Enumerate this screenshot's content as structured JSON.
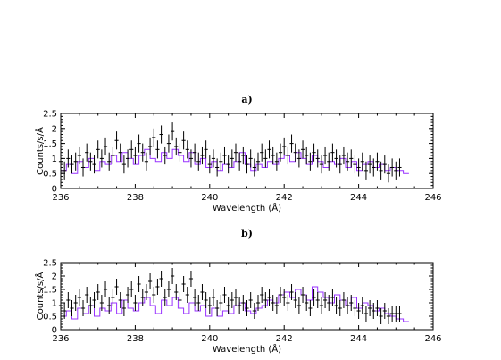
{
  "chart_data": [
    {
      "type": "line",
      "title": "a)",
      "xlabel": "Wavelength (Å)",
      "ylabel": "Counts/s/Å",
      "xlim": [
        236,
        246
      ],
      "ylim": [
        0,
        2.5
      ],
      "x_ticks": [
        "236",
        "238",
        "240",
        "242",
        "244",
        "246"
      ],
      "y_ticks": [
        "0",
        "0.5",
        "1",
        "1.5",
        "2",
        "2.5"
      ],
      "grid": false,
      "series": [
        {
          "kind": "data-with-errorbars",
          "x": [
            236.0,
            236.1,
            236.2,
            236.3,
            236.4,
            236.5,
            236.6,
            236.7,
            236.8,
            236.9,
            237.0,
            237.1,
            237.2,
            237.3,
            237.4,
            237.5,
            237.6,
            237.7,
            237.8,
            237.9,
            238.0,
            238.1,
            238.2,
            238.3,
            238.4,
            238.5,
            238.6,
            238.7,
            238.8,
            238.9,
            239.0,
            239.1,
            239.2,
            239.3,
            239.4,
            239.5,
            239.6,
            239.7,
            239.8,
            239.9,
            240.0,
            240.1,
            240.2,
            240.3,
            240.4,
            240.5,
            240.6,
            240.7,
            240.8,
            240.9,
            241.0,
            241.1,
            241.2,
            241.3,
            241.4,
            241.5,
            241.6,
            241.7,
            241.8,
            241.9,
            242.0,
            242.1,
            242.2,
            242.3,
            242.4,
            242.5,
            242.6,
            242.7,
            242.8,
            242.9,
            243.0,
            243.1,
            243.2,
            243.3,
            243.4,
            243.5,
            243.6,
            243.7,
            243.8,
            243.9,
            244.0,
            244.1,
            244.2,
            244.3,
            244.4,
            244.5,
            244.6,
            244.7,
            244.8,
            244.9,
            245.0,
            245.1
          ],
          "y": [
            0.9,
            0.6,
            1.0,
            0.8,
            0.9,
            1.1,
            0.7,
            1.2,
            0.9,
            0.8,
            1.3,
            1.0,
            1.4,
            0.9,
            1.1,
            1.6,
            1.2,
            0.8,
            1.0,
            1.3,
            1.1,
            1.5,
            1.2,
            0.9,
            1.4,
            1.7,
            1.3,
            1.8,
            1.1,
            1.5,
            1.9,
            1.4,
            1.2,
            1.6,
            1.3,
            1.0,
            1.2,
            0.9,
            1.1,
            1.3,
            0.8,
            1.0,
            0.7,
            0.9,
            1.1,
            0.8,
            1.0,
            1.2,
            0.9,
            1.1,
            0.8,
            1.0,
            0.7,
            0.9,
            1.2,
            1.0,
            1.3,
            1.1,
            0.9,
            1.2,
            1.4,
            1.1,
            1.5,
            1.2,
            1.0,
            1.3,
            1.1,
            0.9,
            1.2,
            1.0,
            0.8,
            1.1,
            0.9,
            1.2,
            1.0,
            0.8,
            1.1,
            0.9,
            1.0,
            0.8,
            0.7,
            0.9,
            0.6,
            0.8,
            0.7,
            0.9,
            0.6,
            0.8,
            0.5,
            0.7,
            0.6,
            0.7
          ],
          "yerr": 0.3
        },
        {
          "kind": "model-step",
          "color": "#9933ff",
          "x": [
            236.0,
            236.15,
            236.3,
            236.45,
            236.6,
            236.75,
            236.9,
            237.05,
            237.2,
            237.35,
            237.5,
            237.65,
            237.8,
            237.95,
            238.1,
            238.25,
            238.4,
            238.55,
            238.7,
            238.85,
            239.0,
            239.15,
            239.3,
            239.45,
            239.6,
            239.75,
            239.9,
            240.05,
            240.2,
            240.35,
            240.5,
            240.65,
            240.8,
            240.95,
            241.1,
            241.25,
            241.4,
            241.55,
            241.7,
            241.85,
            242.0,
            242.15,
            242.3,
            242.45,
            242.6,
            242.75,
            242.9,
            243.05,
            243.2,
            243.35,
            243.5,
            243.65,
            243.8,
            243.95,
            244.1,
            244.25,
            244.4,
            244.55,
            244.7,
            244.85,
            245.0,
            245.2
          ],
          "y": [
            0.6,
            0.8,
            0.5,
            0.9,
            0.7,
            1.0,
            0.6,
            0.9,
            0.8,
            1.1,
            0.9,
            1.2,
            1.0,
            0.8,
            1.1,
            1.3,
            1.0,
            0.9,
            1.2,
            1.0,
            1.3,
            1.1,
            0.9,
            1.2,
            0.8,
            1.0,
            0.7,
            0.9,
            0.6,
            0.8,
            0.7,
            0.9,
            1.2,
            0.8,
            0.6,
            0.8,
            0.7,
            0.9,
            0.8,
            1.0,
            1.1,
            0.9,
            1.2,
            1.0,
            0.8,
            1.1,
            0.9,
            0.7,
            0.9,
            0.8,
            1.0,
            0.7,
            0.9,
            0.6,
            0.8,
            0.9,
            0.7,
            0.8,
            0.6,
            0.7,
            0.6,
            0.5
          ]
        }
      ]
    },
    {
      "type": "line",
      "title": "b)",
      "xlabel": "Wavelength (Å)",
      "ylabel": "Counts/s/Å",
      "xlim": [
        236,
        246
      ],
      "ylim": [
        0,
        2.5
      ],
      "x_ticks": [
        "236",
        "238",
        "240",
        "242",
        "244",
        "246"
      ],
      "y_ticks": [
        "0",
        "0.5",
        "1",
        "1.5",
        "2",
        "2.5"
      ],
      "grid": false,
      "series": [
        {
          "kind": "data-with-errorbars",
          "x": [
            236.0,
            236.1,
            236.2,
            236.3,
            236.4,
            236.5,
            236.6,
            236.7,
            236.8,
            236.9,
            237.0,
            237.1,
            237.2,
            237.3,
            237.4,
            237.5,
            237.6,
            237.7,
            237.8,
            237.9,
            238.0,
            238.1,
            238.2,
            238.3,
            238.4,
            238.5,
            238.6,
            238.7,
            238.8,
            238.9,
            239.0,
            239.1,
            239.2,
            239.3,
            239.4,
            239.5,
            239.6,
            239.7,
            239.8,
            239.9,
            240.0,
            240.1,
            240.2,
            240.3,
            240.4,
            240.5,
            240.6,
            240.7,
            240.8,
            240.9,
            241.0,
            241.1,
            241.2,
            241.3,
            241.4,
            241.5,
            241.6,
            241.7,
            241.8,
            241.9,
            242.0,
            242.1,
            242.2,
            242.3,
            242.4,
            242.5,
            242.6,
            242.7,
            242.8,
            242.9,
            243.0,
            243.1,
            243.2,
            243.3,
            243.4,
            243.5,
            243.6,
            243.7,
            243.8,
            243.9,
            244.0,
            244.1,
            244.2,
            244.3,
            244.4,
            244.5,
            244.6,
            244.7,
            244.8,
            244.9,
            245.0,
            245.1
          ],
          "y": [
            0.9,
            0.7,
            1.1,
            0.8,
            1.0,
            1.2,
            0.8,
            1.3,
            0.9,
            1.1,
            1.4,
            1.0,
            1.5,
            0.9,
            1.2,
            1.6,
            1.1,
            0.8,
            1.3,
            1.5,
            1.0,
            1.7,
            1.2,
            1.4,
            1.8,
            1.3,
            1.6,
            1.9,
            1.2,
            1.5,
            2.0,
            1.4,
            1.1,
            1.7,
            1.3,
            1.9,
            1.2,
            1.0,
            1.4,
            1.1,
            0.9,
            1.2,
            0.8,
            1.0,
            1.3,
            0.9,
            1.1,
            1.2,
            0.9,
            1.0,
            0.8,
            1.1,
            0.7,
            1.0,
            1.3,
            1.1,
            1.2,
            1.0,
            0.9,
            1.3,
            1.2,
            1.0,
            1.4,
            1.1,
            0.9,
            1.3,
            1.0,
            0.8,
            1.2,
            1.1,
            0.9,
            1.1,
            1.0,
            1.2,
            0.9,
            0.8,
            1.1,
            0.9,
            1.0,
            0.8,
            0.7,
            0.9,
            0.6,
            0.8,
            0.7,
            0.8,
            0.5,
            0.7,
            0.5,
            0.6,
            0.6,
            0.6
          ],
          "yerr": 0.3
        },
        {
          "kind": "model-step",
          "color": "#9933ff",
          "x": [
            236.0,
            236.15,
            236.3,
            236.45,
            236.6,
            236.75,
            236.9,
            237.05,
            237.2,
            237.35,
            237.5,
            237.65,
            237.8,
            237.95,
            238.1,
            238.25,
            238.4,
            238.55,
            238.7,
            238.85,
            239.0,
            239.15,
            239.3,
            239.45,
            239.6,
            239.75,
            239.9,
            240.05,
            240.2,
            240.35,
            240.5,
            240.65,
            240.8,
            240.95,
            241.1,
            241.25,
            241.4,
            241.55,
            241.7,
            241.85,
            242.0,
            242.15,
            242.3,
            242.45,
            242.6,
            242.75,
            242.9,
            243.05,
            243.2,
            243.35,
            243.5,
            243.65,
            243.8,
            243.95,
            244.1,
            244.25,
            244.4,
            244.55,
            244.7,
            244.85,
            245.0,
            245.2
          ],
          "y": [
            0.5,
            0.7,
            0.4,
            0.8,
            0.6,
            0.9,
            0.5,
            0.8,
            0.7,
            1.0,
            0.6,
            1.1,
            0.8,
            0.7,
            1.0,
            1.2,
            0.9,
            0.6,
            1.1,
            0.9,
            1.2,
            0.8,
            0.6,
            1.0,
            0.7,
            0.9,
            0.5,
            0.8,
            0.5,
            0.7,
            0.6,
            0.9,
            1.0,
            0.7,
            0.6,
            0.8,
            0.9,
            1.1,
            1.0,
            1.3,
            1.4,
            1.2,
            1.5,
            1.3,
            1.1,
            1.6,
            1.4,
            1.2,
            1.0,
            1.3,
            1.1,
            0.9,
            1.2,
            0.8,
            1.0,
            0.9,
            0.7,
            0.8,
            0.6,
            0.5,
            0.4,
            0.3
          ]
        }
      ]
    }
  ]
}
